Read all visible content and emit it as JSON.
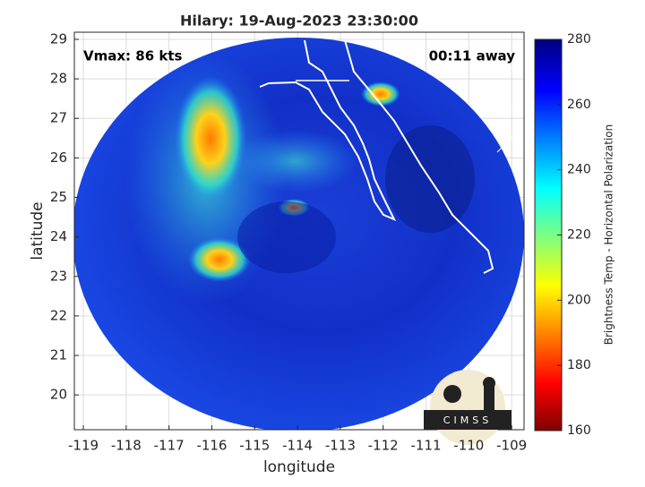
{
  "chart_data": {
    "type": "image",
    "title": "Hilary: 19-Aug-2023 23:30:00",
    "annotations": [
      "Vmax: 86 kts",
      "00:11 away"
    ],
    "xlabel": "longitude",
    "ylabel": "latitude",
    "xlim": [
      -119.21,
      -108.71
    ],
    "ylim": [
      19.12,
      29.18
    ],
    "xticks": [
      -119,
      -118,
      -117,
      -116,
      -115,
      -114,
      -113,
      -112,
      -111,
      -110,
      -109
    ],
    "yticks": [
      20,
      21,
      22,
      23,
      24,
      25,
      26,
      27,
      28,
      29
    ],
    "grid": true,
    "colorbar": {
      "label": "Brightness Temp - Horizontal Polarization",
      "lim": [
        160,
        280
      ],
      "ticks": [
        160,
        180,
        200,
        220,
        240,
        260,
        280
      ]
    },
    "logo": "CIMSS"
  }
}
